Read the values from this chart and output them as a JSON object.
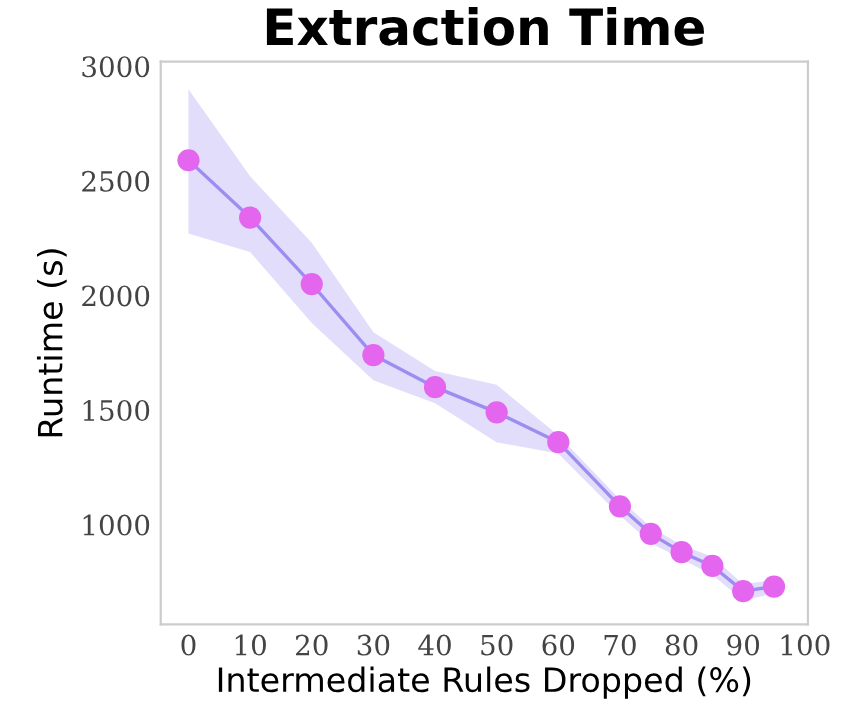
{
  "chart_data": {
    "type": "line",
    "title": "Extraction Time",
    "xlabel": "Intermediate Rules Dropped (%)",
    "ylabel": "Runtime (s)",
    "x": [
      0,
      10,
      20,
      30,
      40,
      50,
      60,
      70,
      75,
      80,
      85,
      90,
      95
    ],
    "series": [
      {
        "color": "#9b8ef0",
        "colors": [
          "#e466ee",
          "#e466ee",
          "#e466ee",
          "#e466ee",
          "#e466ee",
          "#e466ee",
          "#e466ee",
          "#e466ee",
          "#e466ee",
          "#e466ee",
          "#e466ee",
          "#e466ee",
          "#e466ee"
        ],
        "values": [
          2590,
          2340,
          2050,
          1740,
          1600,
          1490,
          1360,
          1080,
          960,
          880,
          820,
          710,
          730
        ],
        "lower": [
          2270,
          2190,
          1880,
          1630,
          1530,
          1360,
          1310,
          1040,
          920,
          850,
          780,
          670,
          700
        ],
        "upper": [
          2900,
          2520,
          2230,
          1840,
          1670,
          1610,
          1390,
          1110,
          990,
          910,
          860,
          740,
          760
        ]
      }
    ],
    "xlim": [
      -4.5,
      100.5
    ],
    "ylim": [
      565,
      3020
    ],
    "xticks": [
      0,
      10,
      20,
      30,
      40,
      50,
      60,
      70,
      80,
      90,
      100
    ],
    "yticks": [
      1000,
      1500,
      2000,
      2500,
      3000
    ],
    "marker": "circle",
    "line_style": "solid",
    "grid": false,
    "legend": false
  }
}
